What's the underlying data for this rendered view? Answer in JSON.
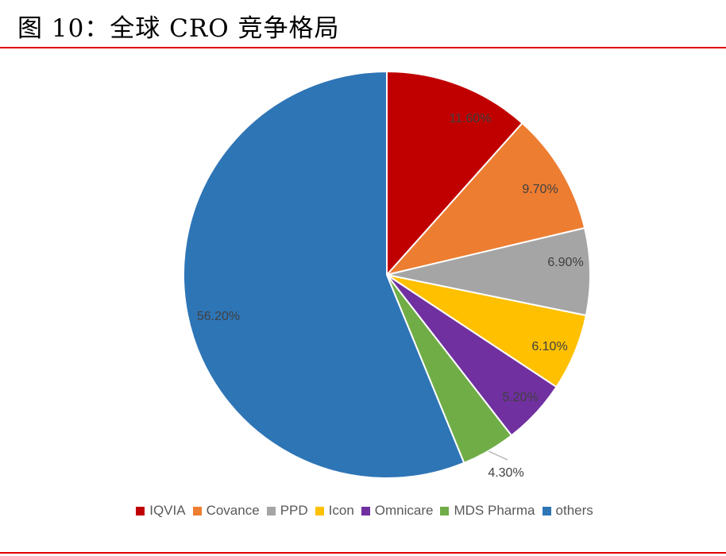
{
  "title": "图 10：全球 CRO 竞争格局",
  "chart_data": {
    "type": "pie",
    "title": "全球 CRO 竞争格局",
    "categories": [
      "IQVIA",
      "Covance",
      "PPD",
      "Icon",
      "Omnicare",
      "MDS Pharma",
      "others"
    ],
    "values": [
      11.6,
      9.7,
      6.9,
      6.1,
      5.2,
      4.3,
      56.2
    ],
    "labels": [
      "11.60%",
      "9.70%",
      "6.90%",
      "6.10%",
      "5.20%",
      "4.30%",
      "56.20%"
    ],
    "colors": [
      "#c00000",
      "#ed7d31",
      "#a5a5a5",
      "#ffc000",
      "#7030a0",
      "#70ad47",
      "#2e75b6"
    ],
    "start_angle_deg": 0,
    "direction": "clockwise",
    "legend_position": "bottom"
  },
  "legend": [
    {
      "label": "IQVIA",
      "color": "#c00000"
    },
    {
      "label": "Covance",
      "color": "#ed7d31"
    },
    {
      "label": "PPD",
      "color": "#a5a5a5"
    },
    {
      "label": "Icon",
      "color": "#ffc000"
    },
    {
      "label": "Omnicare",
      "color": "#7030a0"
    },
    {
      "label": "MDS Pharma",
      "color": "#70ad47"
    },
    {
      "label": "others",
      "color": "#2e75b6"
    }
  ]
}
